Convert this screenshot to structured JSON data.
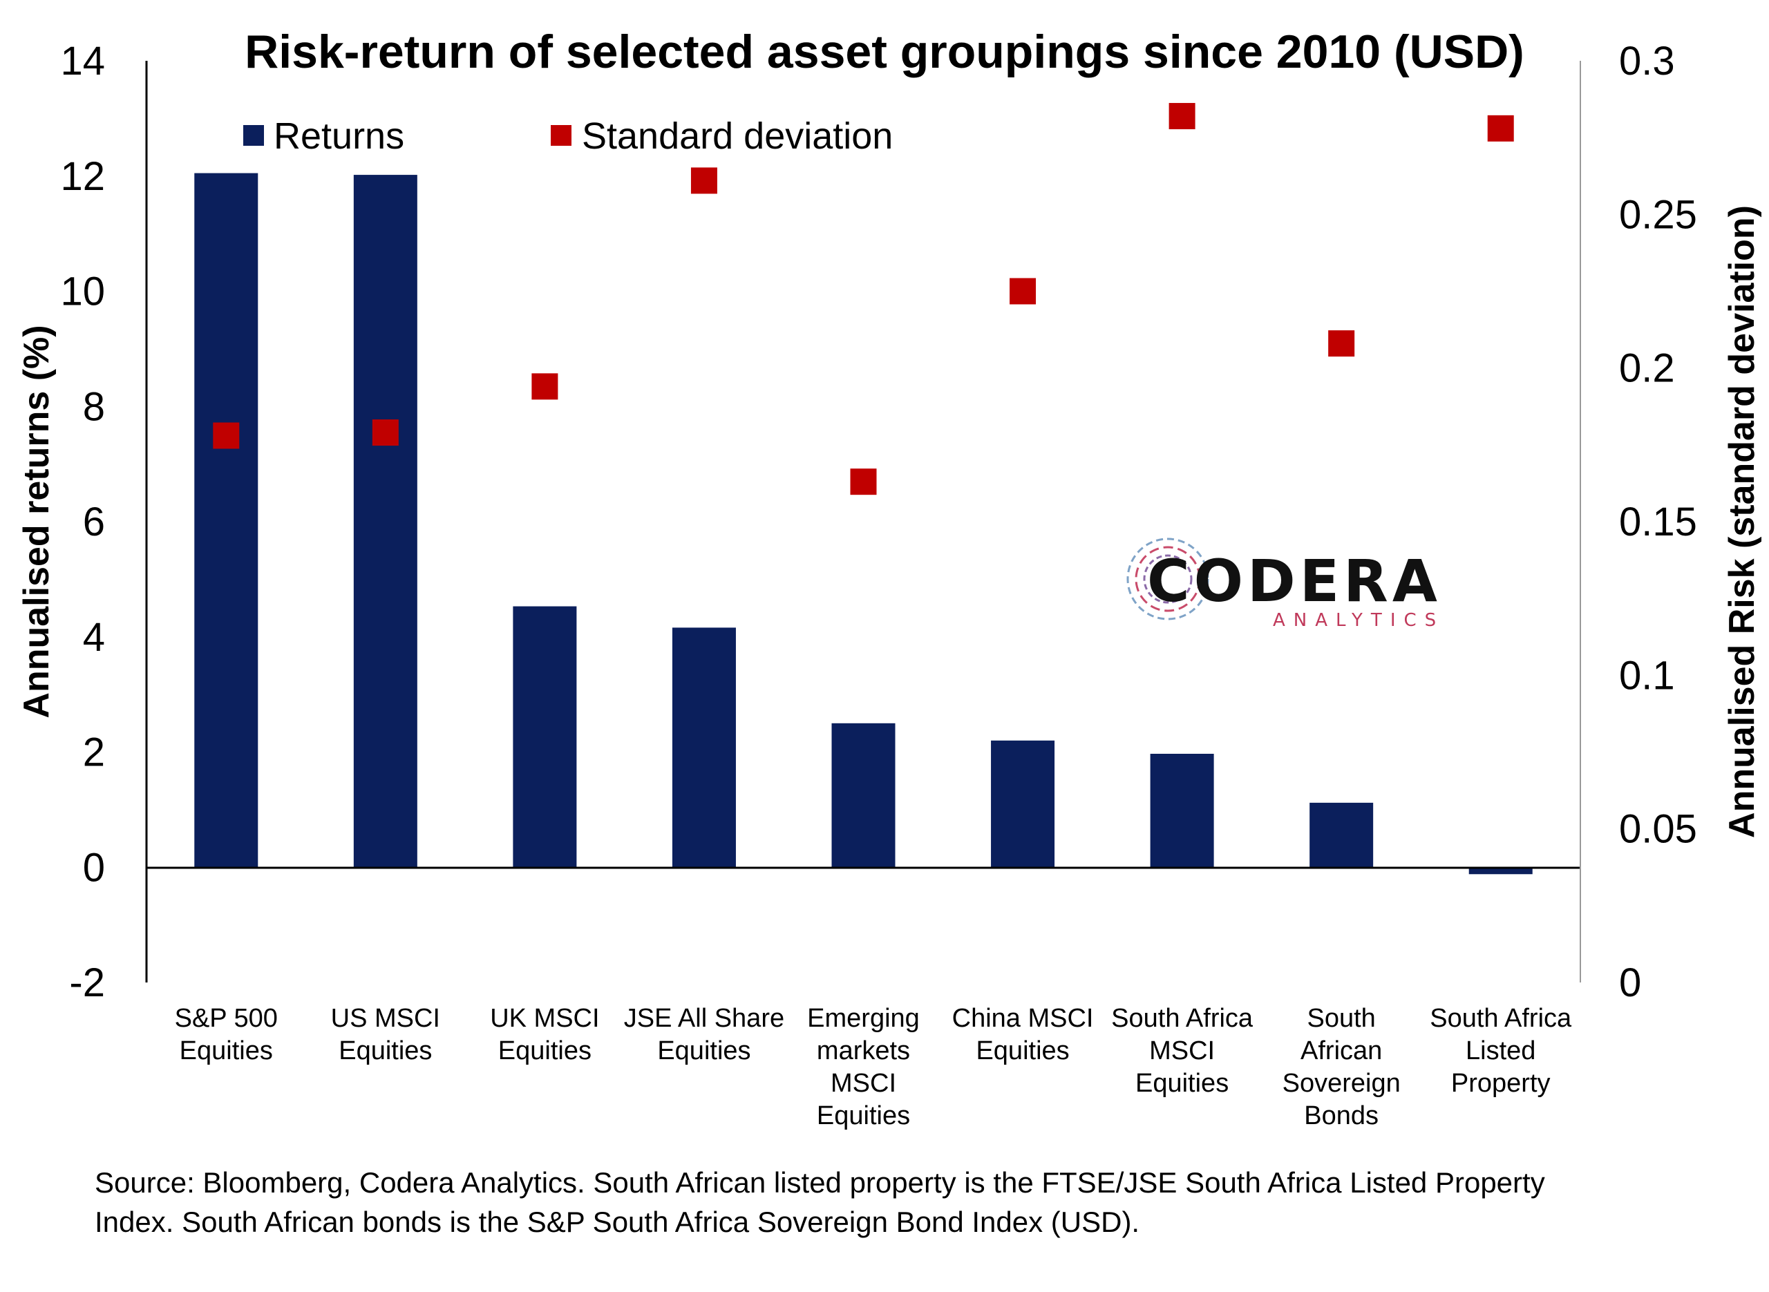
{
  "chart_data": {
    "type": "bar",
    "title": "Risk-return of selected asset groupings since 2010 (USD)",
    "categories": [
      [
        "S&P 500",
        "Equities"
      ],
      [
        "US MSCI",
        "Equities"
      ],
      [
        "UK MSCI",
        "Equities"
      ],
      [
        "JSE All Share",
        "Equities"
      ],
      [
        "Emerging",
        "markets",
        "MSCI",
        "Equities"
      ],
      [
        "China MSCI",
        "Equities"
      ],
      [
        "South Africa",
        "MSCI",
        "Equities"
      ],
      [
        "South",
        "African",
        "Sovereign",
        "Bonds"
      ],
      [
        "South Africa",
        "Listed",
        "Property"
      ]
    ],
    "series": [
      {
        "name": "Returns",
        "type": "bar",
        "axis": "left",
        "color": "#0b1f5c",
        "values": [
          12.05,
          12.02,
          4.53,
          4.16,
          2.5,
          2.2,
          1.97,
          1.12,
          -0.12
        ]
      },
      {
        "name": "Standard deviation",
        "type": "scatter",
        "axis": "right",
        "color": "#c00000",
        "values": [
          0.178,
          0.179,
          0.194,
          0.261,
          0.163,
          0.225,
          0.282,
          0.208,
          0.278
        ]
      }
    ],
    "ylabel": "Annualised returns (%)",
    "ylabel_right": "Annualised Risk (standard deviation)",
    "ylim": [
      -2,
      14
    ],
    "ylim_right": [
      0,
      0.3
    ],
    "yticks": [
      "-2",
      "0",
      "2",
      "4",
      "6",
      "8",
      "10",
      "12",
      "14"
    ],
    "yticks_right": [
      "0",
      "0.05",
      "0.1",
      "0.15",
      "0.2",
      "0.25",
      "0.3"
    ],
    "legend": "top-left",
    "grid": false
  },
  "logo": {
    "name": "CODERA",
    "sub": "ANALYTICS"
  },
  "source": {
    "line1": "Source: Bloomberg, Codera Analytics. South African listed property is the FTSE/JSE South Africa Listed Property",
    "line2": "Index. South African bonds is the S&P South Africa Sovereign Bond Index (USD)."
  }
}
